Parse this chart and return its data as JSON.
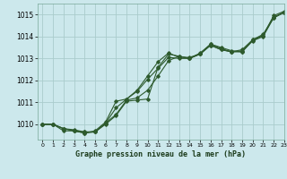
{
  "title": "Graphe pression niveau de la mer (hPa)",
  "bg_color": "#cce8ec",
  "grid_color": "#aacccc",
  "line_color": "#2d5a2d",
  "xlim": [
    -0.5,
    23
  ],
  "ylim": [
    1009.3,
    1015.5
  ],
  "yticks": [
    1010,
    1011,
    1012,
    1013,
    1014,
    1015
  ],
  "xticks": [
    0,
    1,
    2,
    3,
    4,
    5,
    6,
    7,
    8,
    9,
    10,
    11,
    12,
    13,
    14,
    15,
    16,
    17,
    18,
    19,
    20,
    21,
    22,
    23
  ],
  "series": [
    [
      1010.0,
      1010.0,
      1009.7,
      1009.7,
      1009.6,
      1009.65,
      1010.0,
      1010.4,
      1011.05,
      1011.1,
      1011.15,
      1012.6,
      1013.2,
      1013.1,
      1013.0,
      1013.2,
      1013.65,
      1013.5,
      1013.35,
      1013.3,
      1013.85,
      1014.05,
      1014.95,
      1015.15
    ],
    [
      1010.0,
      1010.0,
      1009.8,
      1009.7,
      1009.6,
      1009.7,
      1010.1,
      1011.05,
      1011.15,
      1011.55,
      1012.2,
      1012.85,
      1013.25,
      1013.05,
      1013.05,
      1013.2,
      1013.6,
      1013.4,
      1013.3,
      1013.4,
      1013.85,
      1014.1,
      1014.85,
      1015.1
    ],
    [
      1010.0,
      1010.0,
      1009.8,
      1009.7,
      1009.65,
      1009.65,
      1010.05,
      1010.45,
      1011.1,
      1011.2,
      1011.55,
      1012.2,
      1012.9,
      1013.1,
      1013.0,
      1013.25,
      1013.65,
      1013.45,
      1013.3,
      1013.35,
      1013.82,
      1014.05,
      1014.88,
      1015.1
    ],
    [
      1010.0,
      1010.0,
      1009.8,
      1009.75,
      1009.65,
      1009.65,
      1010.05,
      1010.75,
      1011.15,
      1011.5,
      1012.05,
      1012.55,
      1013.05,
      1013.0,
      1013.0,
      1013.2,
      1013.6,
      1013.4,
      1013.3,
      1013.3,
      1013.8,
      1014.0,
      1014.85,
      1015.1
    ]
  ]
}
